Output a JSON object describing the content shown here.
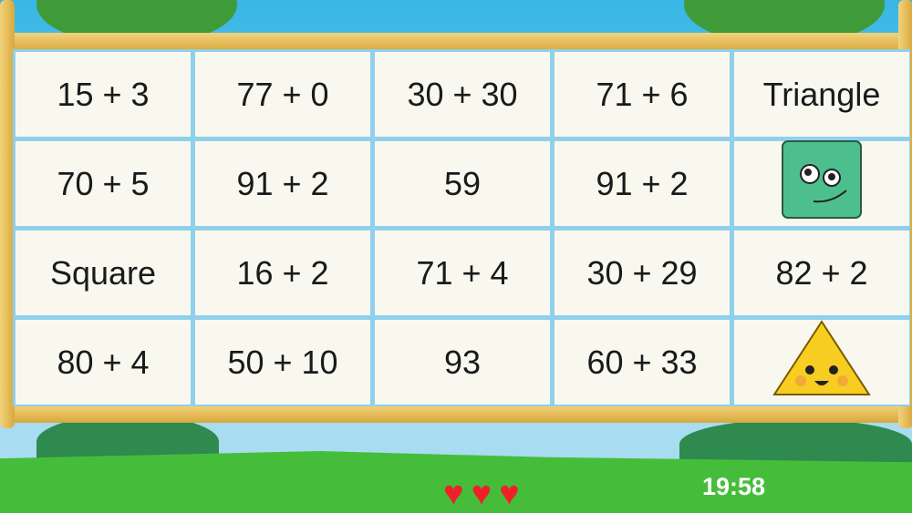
{
  "cards": [
    {
      "label": "15 + 3"
    },
    {
      "label": "77 + 0"
    },
    {
      "label": "30 + 30"
    },
    {
      "label": "71 + 6"
    },
    {
      "label": "Triangle"
    },
    {
      "label": "70 + 5"
    },
    {
      "label": "91 + 2"
    },
    {
      "label": "59"
    },
    {
      "label": "91 + 2"
    },
    {
      "label": "",
      "icon": "square-face-icon"
    },
    {
      "label": "Square"
    },
    {
      "label": "16 + 2"
    },
    {
      "label": "71 + 4"
    },
    {
      "label": "30 + 29"
    },
    {
      "label": "82 + 2"
    },
    {
      "label": "80 + 4"
    },
    {
      "label": "50 + 10"
    },
    {
      "label": "93"
    },
    {
      "label": "60 + 33"
    },
    {
      "label": "",
      "icon": "triangle-face-icon"
    }
  ],
  "lives": 3,
  "timer": "19:58",
  "colors": {
    "heart": "#f0202a",
    "card": "#f9f8ef",
    "square": "#4dbf8e",
    "triangle": "#f7cd22"
  }
}
